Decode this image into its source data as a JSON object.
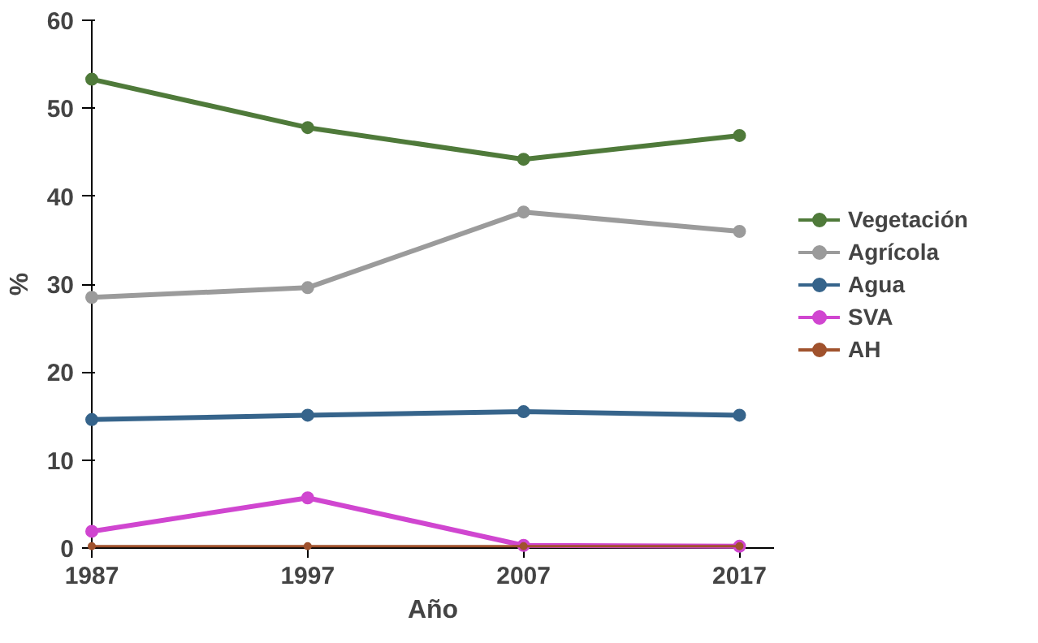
{
  "chart_data": {
    "type": "line",
    "xlabel": "Año",
    "ylabel": "%",
    "x": [
      1987,
      1997,
      2007,
      2017
    ],
    "xlim": [
      1987,
      2018.6
    ],
    "xticks": [
      1987,
      1997,
      2007,
      2017
    ],
    "ylim": [
      0,
      60
    ],
    "yticks": [
      0,
      10,
      20,
      30,
      40,
      50,
      60
    ],
    "grid": false,
    "legend": "right",
    "marker": "circle",
    "line_style": "solid",
    "series": [
      {
        "name": "Vegetación",
        "color": "#4f7a3a",
        "values": [
          53.3,
          47.8,
          44.2,
          46.9
        ]
      },
      {
        "name": "Agrícola",
        "color": "#9b9b9b",
        "values": [
          28.5,
          29.6,
          38.2,
          36.0
        ]
      },
      {
        "name": "Agua",
        "color": "#36648b",
        "values": [
          14.6,
          15.1,
          15.5,
          15.1
        ]
      },
      {
        "name": "SVA",
        "color": "#d046d0",
        "values": [
          1.9,
          5.7,
          0.3,
          0.2
        ]
      },
      {
        "name": "AH",
        "color": "#a0522d",
        "values": [
          0.2,
          0.2,
          0.2,
          0.2
        ]
      }
    ]
  }
}
